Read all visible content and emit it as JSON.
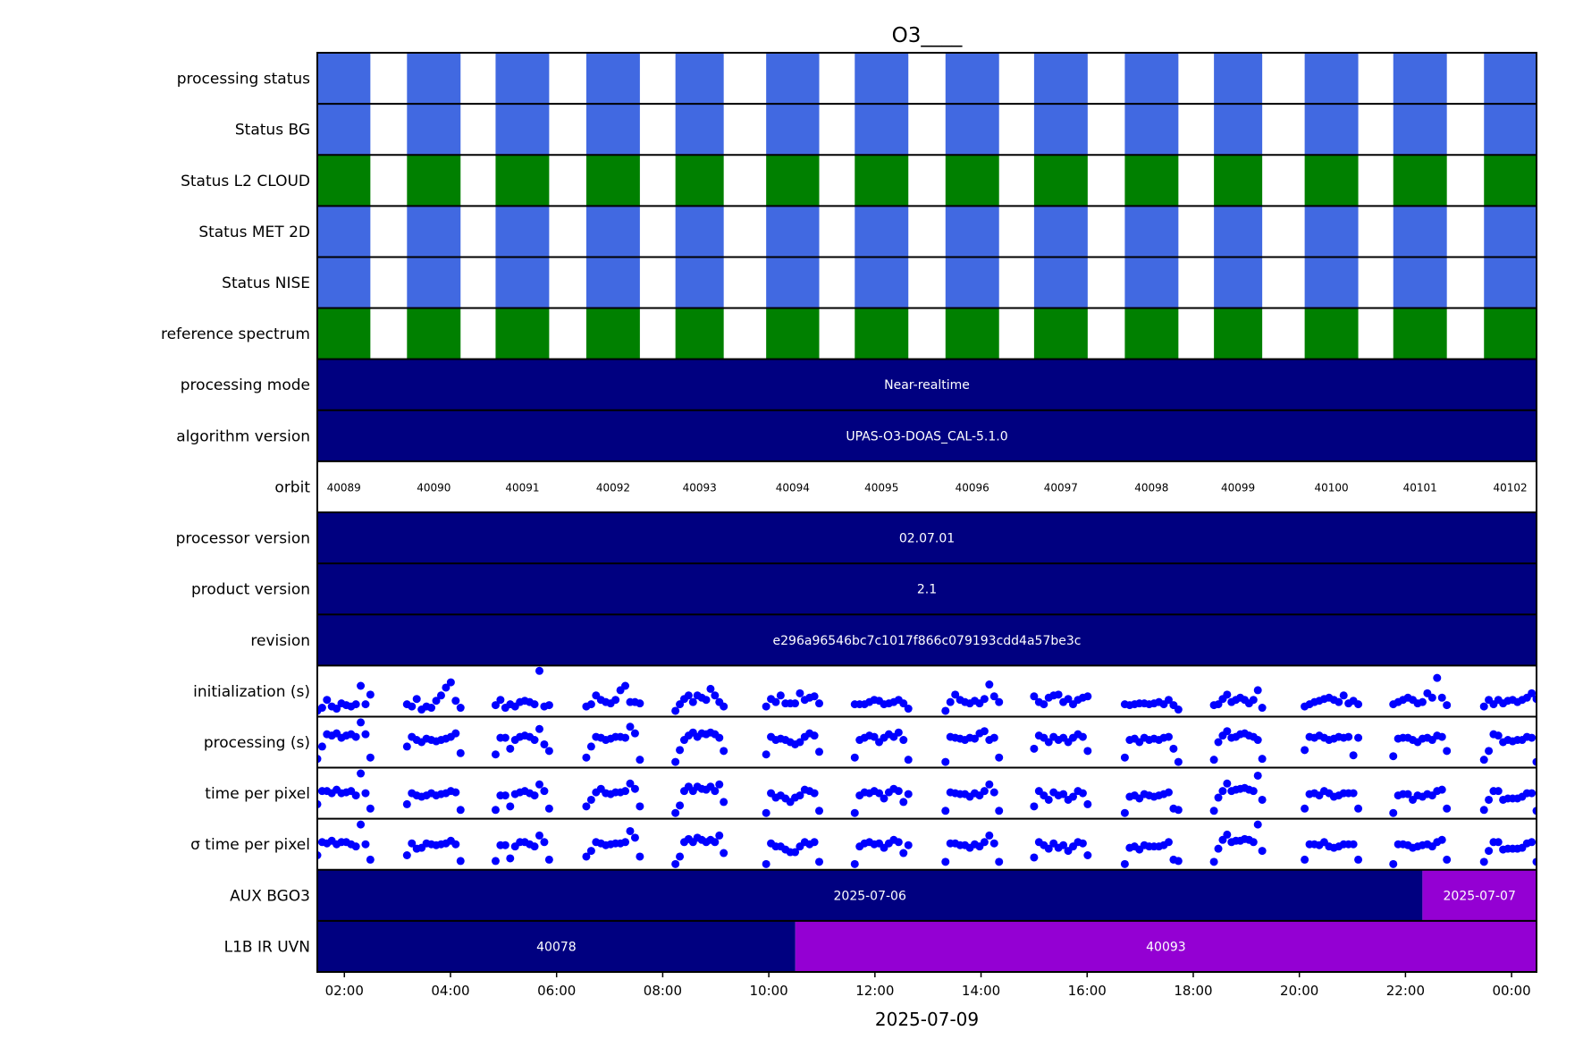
{
  "chart_data": {
    "type": "timeline",
    "title": "O3____",
    "xlabel": "2025-07-09",
    "x_unit": "hours since 2025-07-09 00:00",
    "xlim": [
      1.49,
      24.47
    ],
    "x_ticks": [
      {
        "value": 2,
        "label": "02:00"
      },
      {
        "value": 4,
        "label": "04:00"
      },
      {
        "value": 6,
        "label": "06:00"
      },
      {
        "value": 8,
        "label": "08:00"
      },
      {
        "value": 10,
        "label": "10:00"
      },
      {
        "value": 12,
        "label": "12:00"
      },
      {
        "value": 14,
        "label": "14:00"
      },
      {
        "value": 16,
        "label": "16:00"
      },
      {
        "value": 18,
        "label": "18:00"
      },
      {
        "value": 20,
        "label": "20:00"
      },
      {
        "value": 22,
        "label": "22:00"
      },
      {
        "value": 24,
        "label": "00:00"
      }
    ],
    "colors": {
      "blue": "#4169e1",
      "green": "#008000",
      "navy": "#000080",
      "purple": "#9400d3",
      "point": "#0000ff"
    },
    "orbits": [
      {
        "id": "40089",
        "start": 1.49,
        "end": 2.49
      },
      {
        "id": "40090",
        "start": 3.18,
        "end": 4.19
      },
      {
        "id": "40091",
        "start": 4.85,
        "end": 5.86
      },
      {
        "id": "40092",
        "start": 6.56,
        "end": 7.57
      },
      {
        "id": "40093",
        "start": 8.24,
        "end": 9.15
      },
      {
        "id": "40094",
        "start": 9.95,
        "end": 10.95
      },
      {
        "id": "40095",
        "start": 11.62,
        "end": 12.63
      },
      {
        "id": "40096",
        "start": 13.33,
        "end": 14.34
      },
      {
        "id": "40097",
        "start": 15.0,
        "end": 16.01
      },
      {
        "id": "40098",
        "start": 16.71,
        "end": 17.72
      },
      {
        "id": "40099",
        "start": 18.39,
        "end": 19.3
      },
      {
        "id": "40100",
        "start": 20.1,
        "end": 21.11
      },
      {
        "id": "40101",
        "start": 21.77,
        "end": 22.78
      },
      {
        "id": "40102",
        "start": 23.48,
        "end": 24.47
      }
    ],
    "rows": [
      {
        "label": "processing status",
        "kind": "orbit-blocks",
        "color": "blue"
      },
      {
        "label": "Status BG",
        "kind": "orbit-blocks",
        "color": "blue"
      },
      {
        "label": "Status L2  CLOUD",
        "kind": "orbit-blocks",
        "color": "green"
      },
      {
        "label": "Status MET 2D",
        "kind": "orbit-blocks",
        "color": "blue"
      },
      {
        "label": "Status NISE",
        "kind": "orbit-blocks",
        "color": "blue"
      },
      {
        "label": "reference spectrum",
        "kind": "orbit-blocks",
        "color": "green"
      },
      {
        "label": "processing mode",
        "kind": "segments",
        "segments": [
          {
            "start": 1.49,
            "end": 24.47,
            "color": "navy",
            "text": "Near-realtime"
          }
        ]
      },
      {
        "label": "algorithm version",
        "kind": "segments",
        "segments": [
          {
            "start": 1.49,
            "end": 24.47,
            "color": "navy",
            "text": "UPAS-O3-DOAS_CAL-5.1.0"
          }
        ]
      },
      {
        "label": "orbit",
        "kind": "orbit-labels"
      },
      {
        "label": "processor version",
        "kind": "segments",
        "segments": [
          {
            "start": 1.49,
            "end": 24.47,
            "color": "navy",
            "text": "02.07.01"
          }
        ]
      },
      {
        "label": "product version",
        "kind": "segments",
        "segments": [
          {
            "start": 1.49,
            "end": 24.47,
            "color": "navy",
            "text": "2.1"
          }
        ]
      },
      {
        "label": "revision",
        "kind": "segments",
        "segments": [
          {
            "start": 1.49,
            "end": 24.47,
            "color": "navy",
            "text": "e296a96546bc7c1017f866c079193cdd4a57be3c"
          }
        ]
      },
      {
        "label": "initialization (s)",
        "kind": "scatter",
        "values": [
          [
            0.05,
            0.12,
            0.3,
            0.15,
            0.1,
            0.22,
            0.18,
            0.15,
            0.2,
            0.62,
            0.2,
            0.42
          ],
          [
            0.2,
            0.15,
            0.32,
            0.08,
            0.15,
            0.12,
            0.28,
            0.4,
            0.58,
            0.7,
            0.28,
            0.12
          ],
          [
            0.18,
            0.3,
            0.12,
            0.2,
            0.15,
            0.25,
            0.28,
            0.25,
            0.2,
            0.96,
            0.15,
            0.18
          ],
          [
            0.15,
            0.2,
            0.4,
            0.3,
            0.25,
            0.22,
            0.3,
            0.52,
            0.62,
            0.25,
            0.25,
            0.22
          ],
          [
            0.05,
            0.2,
            0.32,
            0.4,
            0.25,
            0.4,
            0.35,
            0.3,
            0.55,
            0.4,
            0.25,
            0.15
          ],
          [
            0.15,
            0.32,
            0.25,
            0.4,
            0.22,
            0.22,
            0.22,
            0.45,
            0.3,
            0.35,
            0.38,
            0.22
          ],
          [
            0.2,
            0.2,
            0.2,
            0.25,
            0.3,
            0.28,
            0.2,
            0.22,
            0.25,
            0.3,
            0.22,
            0.1
          ],
          [
            0.05,
            0.25,
            0.42,
            0.3,
            0.25,
            0.22,
            0.28,
            0.22,
            0.32,
            0.65,
            0.38,
            0.25
          ],
          [
            0.38,
            0.25,
            0.2,
            0.35,
            0.4,
            0.42,
            0.25,
            0.32,
            0.2,
            0.3,
            0.35,
            0.38
          ],
          [
            0.2,
            0.18,
            0.2,
            0.22,
            0.22,
            0.2,
            0.22,
            0.25,
            0.2,
            0.3,
            0.18,
            0.08
          ],
          [
            0.18,
            0.2,
            0.32,
            0.42,
            0.25,
            0.3,
            0.35,
            0.3,
            0.22,
            0.3,
            0.52,
            0.12
          ],
          [
            0.15,
            0.2,
            0.25,
            0.28,
            0.32,
            0.35,
            0.3,
            0.25,
            0.4,
            0.22,
            0.28,
            0.2
          ],
          [
            0.2,
            0.25,
            0.3,
            0.35,
            0.3,
            0.22,
            0.25,
            0.45,
            0.35,
            0.8,
            0.35,
            0.18
          ],
          [
            0.15,
            0.3,
            0.2,
            0.3,
            0.22,
            0.28,
            0.3,
            0.25,
            0.3,
            0.35,
            0.45,
            0.32
          ]
        ]
      },
      {
        "label": "processing (s)",
        "kind": "scatter",
        "values": [
          [
            0.12,
            0.4,
            0.68,
            0.65,
            0.7,
            0.6,
            0.65,
            0.68,
            0.62,
            0.95,
            0.68,
            0.15
          ],
          [
            0.4,
            0.62,
            0.55,
            0.5,
            0.58,
            0.55,
            0.52,
            0.55,
            0.58,
            0.62,
            0.7,
            0.25
          ],
          [
            0.22,
            0.6,
            0.6,
            0.35,
            0.55,
            0.62,
            0.65,
            0.62,
            0.55,
            0.8,
            0.45,
            0.3
          ],
          [
            0.15,
            0.4,
            0.62,
            0.6,
            0.55,
            0.58,
            0.62,
            0.62,
            0.6,
            0.85,
            0.7,
            0.1
          ],
          [
            0.05,
            0.32,
            0.55,
            0.65,
            0.72,
            0.62,
            0.7,
            0.68,
            0.72,
            0.68,
            0.6,
            0.3
          ],
          [
            0.22,
            0.62,
            0.55,
            0.58,
            0.55,
            0.5,
            0.45,
            0.5,
            0.62,
            0.7,
            0.65,
            0.28
          ],
          [
            0.15,
            0.55,
            0.6,
            0.65,
            0.62,
            0.5,
            0.6,
            0.68,
            0.62,
            0.72,
            0.55,
            0.1
          ],
          [
            0.05,
            0.62,
            0.6,
            0.58,
            0.55,
            0.6,
            0.58,
            0.7,
            0.75,
            0.55,
            0.6,
            0.15
          ],
          [
            0.35,
            0.65,
            0.6,
            0.5,
            0.62,
            0.55,
            0.6,
            0.5,
            0.6,
            0.68,
            0.62,
            0.3
          ],
          [
            0.15,
            0.55,
            0.58,
            0.5,
            0.6,
            0.55,
            0.58,
            0.55,
            0.6,
            0.62,
            0.35,
            0.05
          ],
          [
            0.1,
            0.5,
            0.65,
            0.75,
            0.6,
            0.62,
            0.68,
            0.7,
            0.65,
            0.62,
            0.55,
            0.12
          ],
          [
            0.32,
            0.62,
            0.6,
            0.65,
            0.6,
            0.55,
            0.58,
            0.62,
            0.6,
            0.62,
            0.2,
            0.6
          ],
          [
            0.18,
            0.58,
            0.6,
            0.6,
            0.55,
            0.5,
            0.58,
            0.6,
            0.55,
            0.65,
            0.62,
            0.3
          ],
          [
            0.1,
            0.3,
            0.68,
            0.65,
            0.5,
            0.55,
            0.52,
            0.55,
            0.55,
            0.62,
            0.6,
            0.05
          ]
        ]
      },
      {
        "label": "time per pixel",
        "kind": "scatter",
        "values": [
          [
            0.25,
            0.55,
            0.55,
            0.5,
            0.58,
            0.5,
            0.52,
            0.55,
            0.45,
            0.95,
            0.5,
            0.15
          ],
          [
            0.25,
            0.5,
            0.45,
            0.42,
            0.45,
            0.5,
            0.45,
            0.48,
            0.5,
            0.55,
            0.52,
            0.12
          ],
          [
            0.12,
            0.45,
            0.45,
            0.2,
            0.48,
            0.52,
            0.55,
            0.5,
            0.45,
            0.7,
            0.55,
            0.15
          ],
          [
            0.2,
            0.35,
            0.52,
            0.6,
            0.5,
            0.48,
            0.52,
            0.52,
            0.55,
            0.72,
            0.6,
            0.2
          ],
          [
            0.05,
            0.22,
            0.55,
            0.65,
            0.55,
            0.65,
            0.6,
            0.58,
            0.65,
            0.55,
            0.7,
            0.3
          ],
          [
            0.05,
            0.5,
            0.4,
            0.45,
            0.38,
            0.3,
            0.4,
            0.45,
            0.58,
            0.55,
            0.5,
            0.1
          ],
          [
            0.05,
            0.45,
            0.52,
            0.5,
            0.55,
            0.5,
            0.38,
            0.52,
            0.6,
            0.55,
            0.3,
            0.48
          ],
          [
            0.1,
            0.52,
            0.5,
            0.48,
            0.48,
            0.42,
            0.5,
            0.45,
            0.55,
            0.7,
            0.52,
            0.1
          ],
          [
            0.2,
            0.55,
            0.45,
            0.35,
            0.52,
            0.45,
            0.48,
            0.35,
            0.42,
            0.55,
            0.5,
            0.25
          ],
          [
            0.05,
            0.42,
            0.45,
            0.38,
            0.48,
            0.45,
            0.42,
            0.45,
            0.48,
            0.52,
            0.15,
            0.12
          ],
          [
            0.1,
            0.4,
            0.55,
            0.72,
            0.55,
            0.58,
            0.6,
            0.62,
            0.58,
            0.55,
            0.9,
            0.35
          ],
          [
            0.15,
            0.48,
            0.5,
            0.45,
            0.55,
            0.5,
            0.42,
            0.45,
            0.5,
            0.5,
            0.5,
            0.15
          ],
          [
            0.05,
            0.45,
            0.48,
            0.48,
            0.35,
            0.45,
            0.42,
            0.48,
            0.45,
            0.55,
            0.58,
            0.15
          ],
          [
            0.12,
            0.35,
            0.55,
            0.55,
            0.35,
            0.38,
            0.38,
            0.38,
            0.42,
            0.5,
            0.5,
            0.1
          ]
        ]
      },
      {
        "label": "σ time per pixel",
        "kind": "scatter",
        "values": [
          [
            0.25,
            0.55,
            0.52,
            0.58,
            0.5,
            0.55,
            0.55,
            0.5,
            0.45,
            0.95,
            0.5,
            0.15
          ],
          [
            0.25,
            0.52,
            0.4,
            0.42,
            0.52,
            0.5,
            0.48,
            0.5,
            0.52,
            0.58,
            0.5,
            0.12
          ],
          [
            0.12,
            0.48,
            0.48,
            0.18,
            0.45,
            0.55,
            0.55,
            0.5,
            0.45,
            0.7,
            0.55,
            0.15
          ],
          [
            0.22,
            0.35,
            0.55,
            0.52,
            0.48,
            0.5,
            0.52,
            0.52,
            0.55,
            0.8,
            0.65,
            0.22
          ],
          [
            0.05,
            0.22,
            0.55,
            0.62,
            0.55,
            0.65,
            0.6,
            0.55,
            0.6,
            0.55,
            0.7,
            0.3
          ],
          [
            0.05,
            0.52,
            0.45,
            0.45,
            0.38,
            0.32,
            0.32,
            0.45,
            0.55,
            0.5,
            0.55,
            0.1
          ],
          [
            0.05,
            0.45,
            0.52,
            0.55,
            0.5,
            0.52,
            0.42,
            0.52,
            0.6,
            0.55,
            0.3,
            0.48
          ],
          [
            0.1,
            0.52,
            0.52,
            0.48,
            0.48,
            0.42,
            0.5,
            0.45,
            0.55,
            0.7,
            0.52,
            0.1
          ],
          [
            0.2,
            0.55,
            0.48,
            0.4,
            0.52,
            0.42,
            0.48,
            0.35,
            0.45,
            0.55,
            0.52,
            0.25
          ],
          [
            0.05,
            0.42,
            0.45,
            0.38,
            0.48,
            0.45,
            0.45,
            0.45,
            0.48,
            0.55,
            0.15,
            0.12
          ],
          [
            0.1,
            0.4,
            0.6,
            0.72,
            0.55,
            0.58,
            0.58,
            0.62,
            0.6,
            0.55,
            0.95,
            0.35
          ],
          [
            0.15,
            0.5,
            0.5,
            0.48,
            0.55,
            0.45,
            0.42,
            0.45,
            0.5,
            0.5,
            0.5,
            0.15
          ],
          [
            0.05,
            0.5,
            0.5,
            0.48,
            0.42,
            0.45,
            0.48,
            0.5,
            0.45,
            0.55,
            0.6,
            0.15
          ],
          [
            0.1,
            0.35,
            0.55,
            0.55,
            0.38,
            0.4,
            0.4,
            0.4,
            0.42,
            0.52,
            0.55,
            0.1
          ]
        ]
      },
      {
        "label": "AUX BGO3",
        "kind": "segments",
        "segments": [
          {
            "start": 1.49,
            "end": 22.32,
            "color": "navy",
            "text": "2025-07-06"
          },
          {
            "start": 22.32,
            "end": 24.47,
            "color": "purple",
            "text": "2025-07-07"
          }
        ]
      },
      {
        "label": "L1B IR UVN",
        "kind": "segments",
        "segments": [
          {
            "start": 1.49,
            "end": 10.5,
            "color": "navy",
            "text": "40078"
          },
          {
            "start": 10.5,
            "end": 24.47,
            "color": "purple",
            "text": "40093"
          }
        ]
      }
    ]
  }
}
